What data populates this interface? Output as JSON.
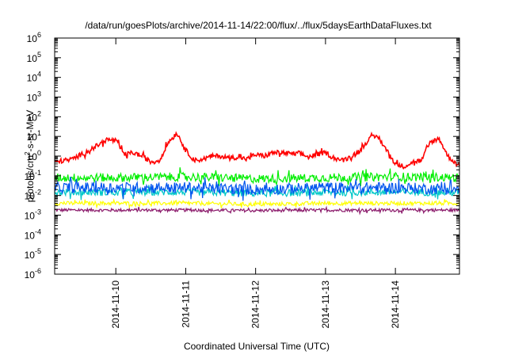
{
  "chart_data": {
    "type": "line",
    "title": "/data/run/goesPlots/archive/2014-11-14/22:00/flux/../flux/5daysEarthDataFluxes.txt",
    "xlabel": "Coordinated Universal Time (UTC)",
    "ylabel": {
      "base": "protons/cm",
      "sup": "2",
      "rest": "-s-sr-MeV"
    },
    "x_range": [
      "2014-11-09T03:00",
      "2014-11-14T22:00"
    ],
    "x_ticks": [
      "2014-11-10",
      "2014-11-11",
      "2014-11-12",
      "2014-11-13",
      "2014-11-14"
    ],
    "y_scale": "log",
    "ylim": [
      1e-06,
      1000000.0
    ],
    "y_ticks": [
      {
        "base": "10",
        "exp": "6"
      },
      {
        "base": "10",
        "exp": "5"
      },
      {
        "base": "10",
        "exp": "4"
      },
      {
        "base": "10",
        "exp": "3"
      },
      {
        "base": "10",
        "exp": "2"
      },
      {
        "base": "10",
        "exp": "1"
      },
      {
        "base": "10",
        "exp": "0"
      },
      {
        "base": "10",
        "exp": "-1"
      },
      {
        "base": "10",
        "exp": "-2"
      },
      {
        "base": "10",
        "exp": "-3"
      },
      {
        "base": "10",
        "exp": "-4"
      },
      {
        "base": "10",
        "exp": "-5"
      },
      {
        "base": "10",
        "exp": "-6"
      }
    ],
    "grid": false,
    "series": [
      {
        "color": "#ff0000",
        "x": [
          "2014-11-09T03:00",
          "2014-11-09T09:00",
          "2014-11-09T15:00",
          "2014-11-09T21:00",
          "2014-11-10T00:00",
          "2014-11-10T03:00",
          "2014-11-10T06:00",
          "2014-11-10T09:00",
          "2014-11-10T12:00",
          "2014-11-10T15:00",
          "2014-11-10T18:00",
          "2014-11-10T21:00",
          "2014-11-11T00:00",
          "2014-11-11T03:00",
          "2014-11-11T06:00",
          "2014-11-11T09:00",
          "2014-11-11T12:00",
          "2014-11-11T15:00",
          "2014-11-11T18:00",
          "2014-11-11T21:00",
          "2014-11-12T00:00",
          "2014-11-12T03:00",
          "2014-11-12T06:00",
          "2014-11-12T09:00",
          "2014-11-12T12:00",
          "2014-11-12T15:00",
          "2014-11-12T18:00",
          "2014-11-12T21:00",
          "2014-11-13T00:00",
          "2014-11-13T03:00",
          "2014-11-13T06:00",
          "2014-11-13T09:00",
          "2014-11-13T12:00",
          "2014-11-13T15:00",
          "2014-11-13T18:00",
          "2014-11-13T21:00",
          "2014-11-14T00:00",
          "2014-11-14T03:00",
          "2014-11-14T06:00",
          "2014-11-14T09:00",
          "2014-11-14T12:00",
          "2014-11-14T15:00",
          "2014-11-14T18:00",
          "2014-11-14T22:00"
        ],
        "values": [
          0.5,
          0.7,
          2,
          7,
          6,
          1.2,
          1.5,
          1,
          0.5,
          0.6,
          5,
          15,
          2,
          0.6,
          0.7,
          1,
          1,
          0.8,
          0.9,
          0.7,
          1.2,
          1,
          1.5,
          1.5,
          1.3,
          1.4,
          0.9,
          1.2,
          1.5,
          0.8,
          0.6,
          1,
          2,
          8,
          10,
          2,
          0.4,
          0.3,
          0.5,
          0.6,
          5,
          8,
          1,
          0.3
        ]
      },
      {
        "color": "#00ee00",
        "x": [
          "2014-11-09T03:00",
          "2014-11-10T00:00",
          "2014-11-11T00:00",
          "2014-11-12T00:00",
          "2014-11-13T00:00",
          "2014-11-14T00:00",
          "2014-11-14T22:00"
        ],
        "values": [
          0.08,
          0.08,
          0.09,
          0.07,
          0.08,
          0.09,
          0.08
        ]
      },
      {
        "color": "#0055ee",
        "x": [
          "2014-11-09T03:00",
          "2014-11-10T00:00",
          "2014-11-11T00:00",
          "2014-11-12T00:00",
          "2014-11-13T00:00",
          "2014-11-14T00:00",
          "2014-11-14T22:00"
        ],
        "values": [
          0.025,
          0.025,
          0.025,
          0.02,
          0.025,
          0.025,
          0.02
        ]
      },
      {
        "color": "#00c8c8",
        "x": [
          "2014-11-09T03:00",
          "2014-11-10T00:00",
          "2014-11-11T00:00",
          "2014-11-12T00:00",
          "2014-11-13T00:00",
          "2014-11-14T00:00",
          "2014-11-14T22:00"
        ],
        "values": [
          0.015,
          0.014,
          0.015,
          0.013,
          0.014,
          0.015,
          0.014
        ]
      },
      {
        "color": "#ffff00",
        "x": [
          "2014-11-09T03:00",
          "2014-11-10T00:00",
          "2014-11-11T00:00",
          "2014-11-12T00:00",
          "2014-11-13T00:00",
          "2014-11-14T00:00",
          "2014-11-14T22:00"
        ],
        "values": [
          0.004,
          0.004,
          0.004,
          0.0035,
          0.004,
          0.004,
          0.004
        ]
      },
      {
        "color": "#8b1a6b",
        "x": [
          "2014-11-09T03:00",
          "2014-11-10T00:00",
          "2014-11-11T00:00",
          "2014-11-12T00:00",
          "2014-11-13T00:00",
          "2014-11-14T00:00",
          "2014-11-14T22:00"
        ],
        "values": [
          0.0018,
          0.0018,
          0.0018,
          0.0017,
          0.0018,
          0.0018,
          0.0018
        ]
      }
    ]
  }
}
